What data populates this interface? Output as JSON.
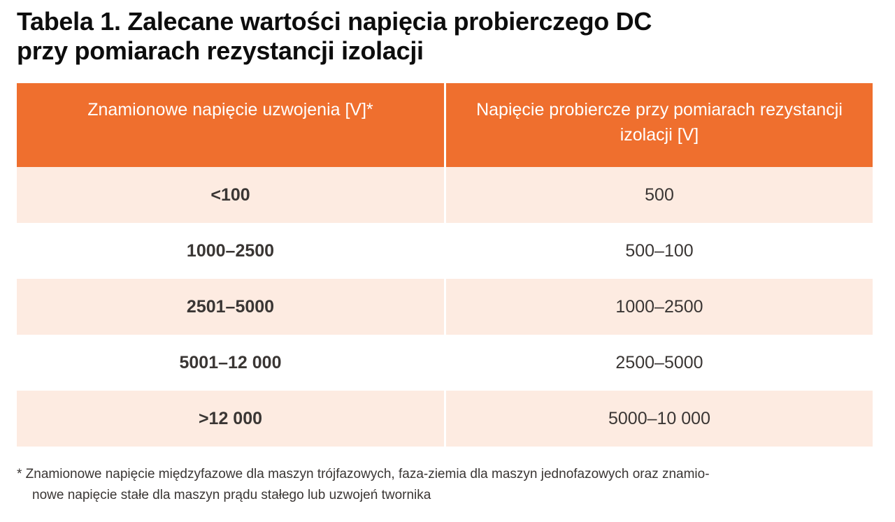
{
  "title": {
    "line1": "Tabela 1. Zalecane wartości napięcia probierczego DC",
    "line2": "przy pomiarach rezystancji izolacji"
  },
  "colors": {
    "header_bg": "#ef6f2e",
    "header_text": "#ffffff",
    "shaded_row_bg": "#fdebe1",
    "plain_row_bg": "#ffffff",
    "body_text": "#3a3634"
  },
  "table": {
    "headers": [
      "Znamionowe napięcie uzwojenia [V]*",
      "Napięcie probiercze przy pomiarach rezystancji izolacji [V]"
    ],
    "rows": [
      [
        "<100",
        "500"
      ],
      [
        "1000–2500",
        "500–100"
      ],
      [
        "2501–5000",
        "1000–2500"
      ],
      [
        "5001–12 000",
        "2500–5000"
      ],
      [
        ">12 000",
        "5000–10 000"
      ]
    ]
  },
  "footnote": {
    "line1": "* Znamionowe napięcie międzyfazowe dla maszyn trójfazowych, faza-ziemia dla maszyn jednofazowych oraz znamio-",
    "line2": "nowe napięcie stałe dla maszyn prądu stałego lub uzwojeń twornika"
  },
  "chart_data": {
    "type": "table",
    "title": "Tabela 1. Zalecane wartości napięcia probierczego DC przy pomiarach rezystancji izolacji",
    "columns": [
      "Znamionowe napięcie uzwojenia [V]*",
      "Napięcie probiercze przy pomiarach rezystancji izolacji [V]"
    ],
    "rows": [
      [
        "<100",
        "500"
      ],
      [
        "1000–2500",
        "500–100"
      ],
      [
        "2501–5000",
        "1000–2500"
      ],
      [
        "5001–12 000",
        "2500–5000"
      ],
      [
        ">12 000",
        "5000–10 000"
      ]
    ],
    "footnote": "* Znamionowe napięcie międzyfazowe dla maszyn trójfazowych, faza-ziemia dla maszyn jednofazowych oraz znamionowe napięcie stałe dla maszyn prądu stałego lub uzwojeń twornika"
  }
}
